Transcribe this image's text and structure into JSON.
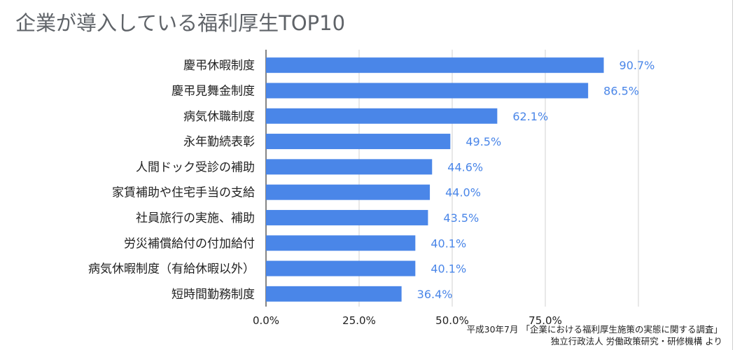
{
  "chart_data": {
    "type": "bar",
    "orientation": "horizontal",
    "title": "企業が導入している福利厚生TOP10",
    "categories": [
      "慶弔休暇制度",
      "慶弔見舞金制度",
      "病気休職制度",
      "永年勤続表彰",
      "人間ドック受診の補助",
      "家賃補助や住宅手当の支給",
      "社員旅行の実施、補助",
      "労災補償給付の付加給付",
      "病気休暇制度（有給休暇以外）",
      "短時間勤務制度"
    ],
    "values": [
      90.7,
      86.5,
      62.1,
      49.5,
      44.6,
      44.0,
      43.5,
      40.1,
      40.1,
      36.4
    ],
    "value_labels": [
      "90.7%",
      "86.5%",
      "62.1%",
      "49.5%",
      "44.6%",
      "44.0%",
      "43.5%",
      "40.1%",
      "40.1%",
      "36.4%"
    ],
    "x_ticks": [
      "0.0%",
      "25.0%",
      "50.0%",
      "75.0%"
    ],
    "xlim": [
      0,
      100
    ],
    "grid": true,
    "legend": "none",
    "bar_color": "#4a86e8",
    "label_color": "#4a86e8"
  },
  "source": {
    "line1": "平成30年7月 「企業における福利厚生施策の実態に関する調査」",
    "line2": "独立行政法人 労働政策研究・研修機構 より"
  }
}
